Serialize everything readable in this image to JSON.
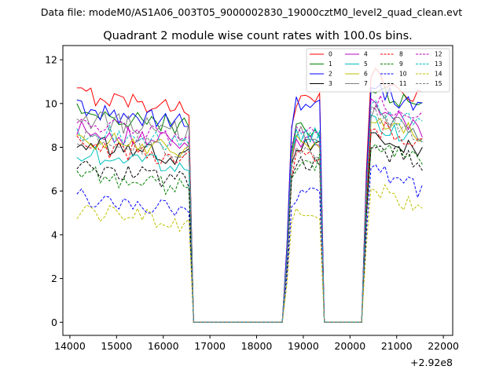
{
  "chart_data": {
    "type": "line",
    "suptitle": "Data file: modeM0/AS1A06_003T05_9000002830_19000cztM0_level2_quad_clean.evt",
    "title": "Quadrant 2 module wise count rates with 100.0s bins.",
    "xlabel": "",
    "ylabel": "",
    "x_offset_label": "+2.92e8",
    "xlim": [
      13850,
      22200
    ],
    "ylim": [
      -0.6,
      12.65
    ],
    "xticks": [
      14000,
      15000,
      16000,
      17000,
      18000,
      19000,
      20000,
      21000,
      22000
    ],
    "xtick_labels": [
      "14000",
      "15000",
      "16000",
      "17000",
      "18000",
      "19000",
      "20000",
      "21000",
      "22000"
    ],
    "yticks": [
      0,
      2,
      4,
      6,
      8,
      10,
      12
    ],
    "ytick_labels": [
      "0",
      "2",
      "4",
      "6",
      "8",
      "10",
      "12"
    ],
    "legend_position": "top-right",
    "segments": [
      {
        "start": 14150,
        "step": 100,
        "count": 25
      },
      {
        "start": 16650,
        "step": 100,
        "count": 20
      },
      {
        "start": 18650,
        "step": 100,
        "count": 8
      },
      {
        "start": 19450,
        "step": 100,
        "count": 8
      },
      {
        "start": 20250,
        "step": 100,
        "count": 14
      }
    ],
    "series": [
      {
        "name": "0",
        "color": "#ff0000",
        "dash": false,
        "level": 10.0,
        "p2": 10.1,
        "p3": 10.6
      },
      {
        "name": "1",
        "color": "#008000",
        "dash": false,
        "level": 9.2,
        "p2": 8.8,
        "p3": 9.9
      },
      {
        "name": "2",
        "color": "#0000ff",
        "dash": false,
        "level": 9.3,
        "p2": 10.0,
        "p3": 10.0
      },
      {
        "name": "3",
        "color": "#000000",
        "dash": false,
        "level": 7.8,
        "p2": 8.1,
        "p3": 8.1
      },
      {
        "name": "4",
        "color": "#bf00bf",
        "dash": false,
        "level": 8.4,
        "p2": 8.2,
        "p3": 9.1
      },
      {
        "name": "5",
        "color": "#00bfbf",
        "dash": false,
        "level": 7.3,
        "p2": 8.5,
        "p3": 8.5
      },
      {
        "name": "6",
        "color": "#bfbf00",
        "dash": false,
        "level": 8.0,
        "p2": 8.2,
        "p3": 8.8
      },
      {
        "name": "7",
        "color": "#808080",
        "dash": false,
        "level": 8.9,
        "p2": 8.6,
        "p3": 8.9
      },
      {
        "name": "8",
        "color": "#ff0000",
        "dash": true,
        "level": 7.7,
        "p2": 7.5,
        "p3": 8.3
      },
      {
        "name": "9",
        "color": "#008000",
        "dash": true,
        "level": 6.4,
        "p2": 7.3,
        "p3": 7.5
      },
      {
        "name": "10",
        "color": "#0000ff",
        "dash": true,
        "level": 5.3,
        "p2": 5.9,
        "p3": 6.3
      },
      {
        "name": "11",
        "color": "#000000",
        "dash": true,
        "level": 6.7,
        "p2": 7.2,
        "p3": 7.4
      },
      {
        "name": "12",
        "color": "#bf00bf",
        "dash": true,
        "level": 8.6,
        "p2": 8.7,
        "p3": 9.5
      },
      {
        "name": "13",
        "color": "#00bfbf",
        "dash": true,
        "level": 8.3,
        "p2": 8.4,
        "p3": 9.2
      },
      {
        "name": "14",
        "color": "#bfbf00",
        "dash": true,
        "level": 4.7,
        "p2": 5.0,
        "p3": 5.4
      },
      {
        "name": "15",
        "color": "#808080",
        "dash": true,
        "level": 8.1,
        "p2": 7.9,
        "p3": 8.8
      }
    ]
  }
}
